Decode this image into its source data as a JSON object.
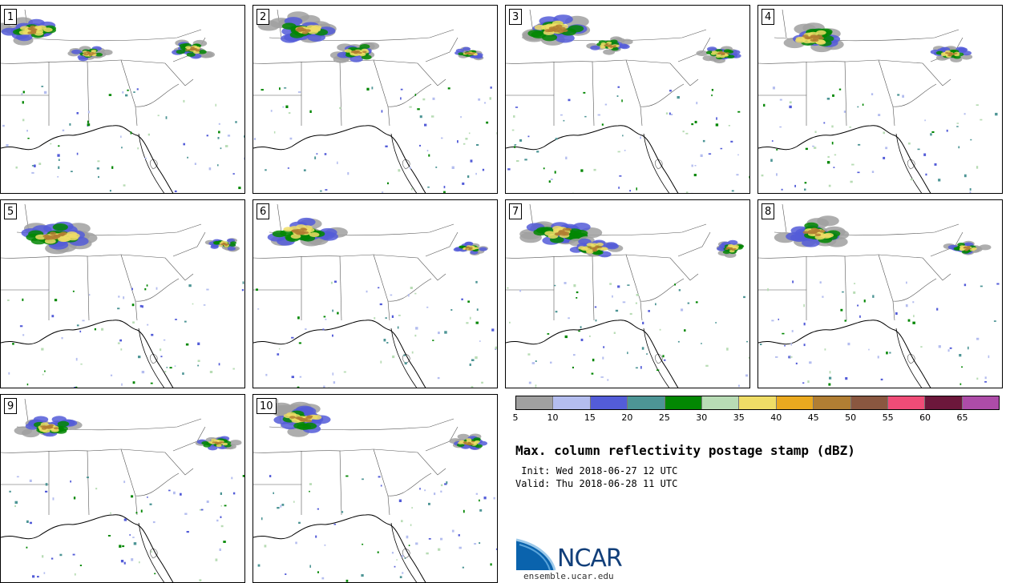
{
  "panels": [
    {
      "label": "1"
    },
    {
      "label": "2"
    },
    {
      "label": "3"
    },
    {
      "label": "4"
    },
    {
      "label": "5"
    },
    {
      "label": "6"
    },
    {
      "label": "7"
    },
    {
      "label": "8"
    },
    {
      "label": "9"
    },
    {
      "label": "10"
    }
  ],
  "colorbar": {
    "colors": [
      "#a0a0a0",
      "#b4bdef",
      "#535cd8",
      "#4d9595",
      "#028702",
      "#b8dcb5",
      "#efdd66",
      "#eaa91f",
      "#b17e33",
      "#8a5740",
      "#ef4c77",
      "#6c173b",
      "#ad4ca8"
    ],
    "ticks": [
      "5",
      "10",
      "15",
      "20",
      "25",
      "30",
      "35",
      "40",
      "45",
      "50",
      "55",
      "60",
      "65"
    ]
  },
  "title": "Max. column reflectivity postage stamp (dBZ)",
  "init": " Init: Wed 2018-06-27 12 UTC",
  "valid": "Valid: Thu 2018-06-28 11 UTC",
  "logo": {
    "text": "NCAR",
    "site": "ensemble.ucar.edu"
  }
}
